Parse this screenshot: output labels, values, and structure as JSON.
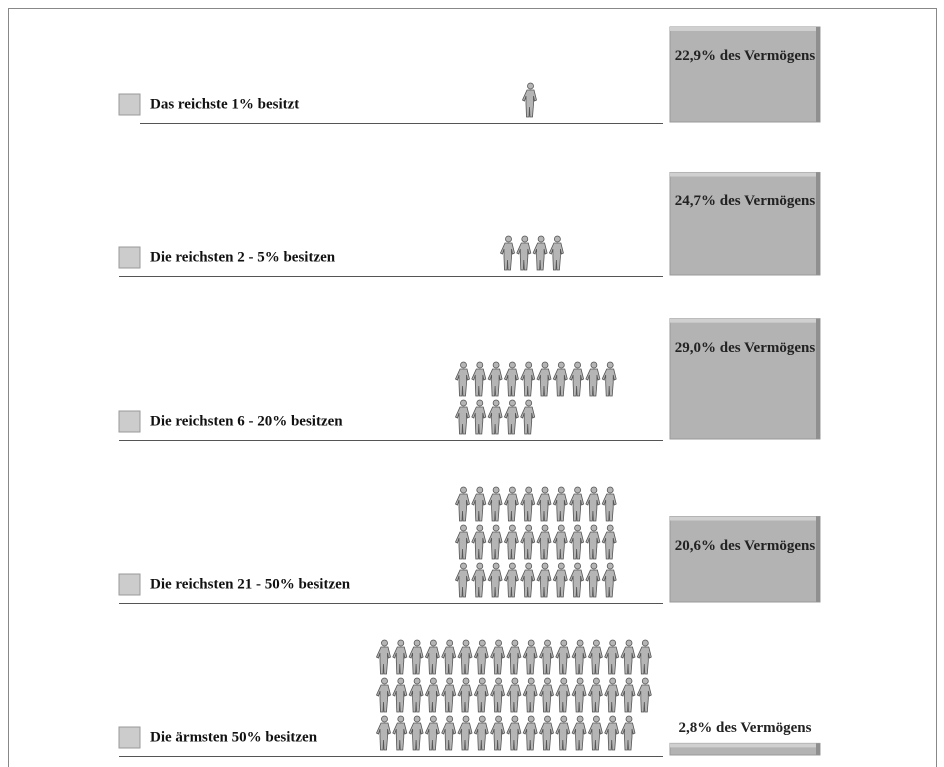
{
  "chart_data": {
    "type": "pictogram",
    "categories": [
      "Das reichste 1% besitzt",
      "Die reichsten 2 - 5% besitzen",
      "Die reichsten 6 - 20% besitzen",
      "Die reichsten 21 - 50% besitzen",
      "Die ärmsten 50% besitzen"
    ],
    "people": [
      1,
      4,
      15,
      30,
      50
    ],
    "values": [
      22.9,
      24.7,
      29.0,
      20.6,
      2.8
    ],
    "value_labels": [
      "22,9% des Vermögens",
      "24,7% des Vermögens",
      "29,0% des Vermögens",
      "20,6% des Vermögens",
      "2,8% des Vermögens"
    ],
    "color": "#b3b3b3"
  }
}
